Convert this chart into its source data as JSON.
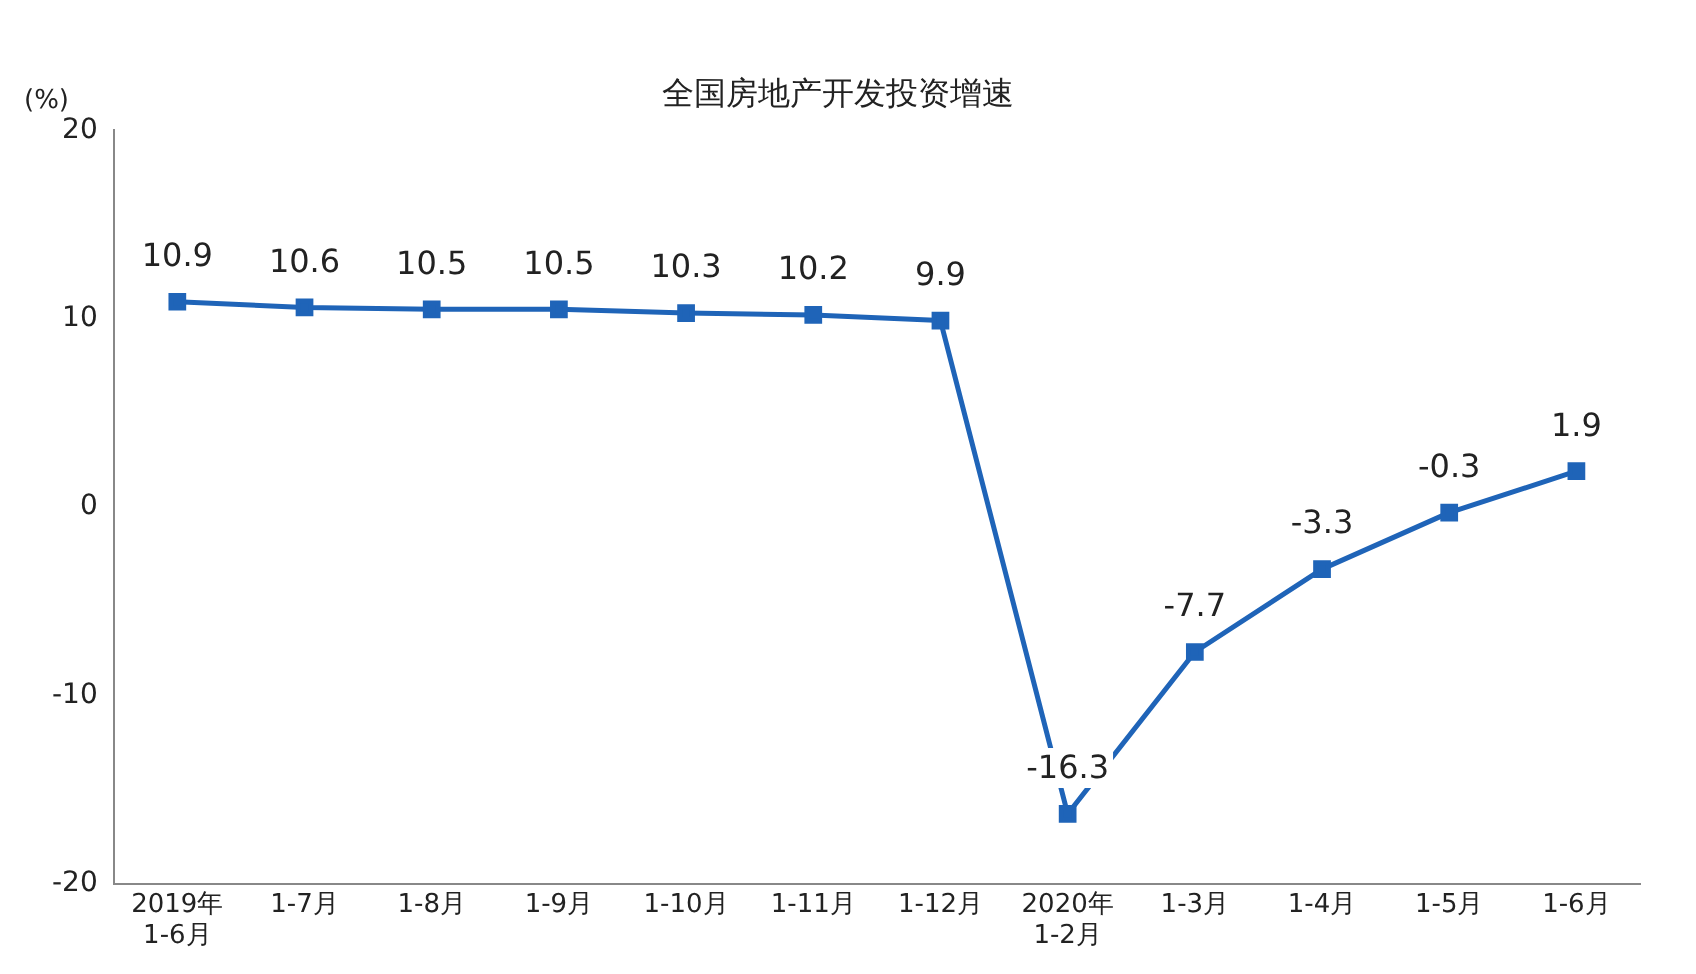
{
  "chart_data": {
    "type": "line",
    "title": "全国房地产开发投资增速",
    "ylabel": "(%)",
    "categories": [
      "2019年\n1-6月",
      "1-7月",
      "1-8月",
      "1-9月",
      "1-10月",
      "1-11月",
      "1-12月",
      "2020年\n1-2月",
      "1-3月",
      "1-4月",
      "1-5月",
      "1-6月"
    ],
    "series": [
      {
        "color": "#1f64b8",
        "values": [
          10.9,
          10.6,
          10.5,
          10.5,
          10.3,
          10.2,
          9.9,
          -16.3,
          -7.7,
          -3.3,
          -0.3,
          1.9
        ]
      }
    ],
    "ylim": [
      -20,
      20
    ],
    "yticks": [
      -20,
      -10,
      0,
      10,
      20
    ],
    "grid": false,
    "legend": false,
    "marker": "square",
    "line_style": "solid",
    "data_labels": true
  }
}
